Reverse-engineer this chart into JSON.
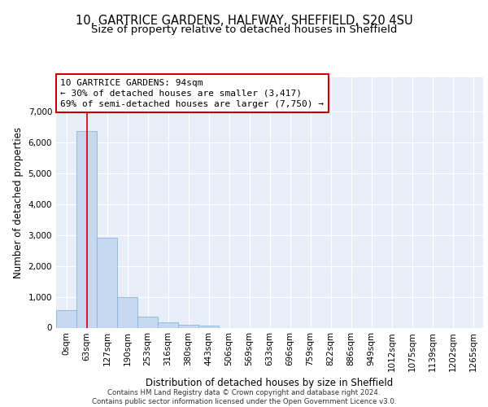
{
  "title_line1": "10, GARTRICE GARDENS, HALFWAY, SHEFFIELD, S20 4SU",
  "title_line2": "Size of property relative to detached houses in Sheffield",
  "xlabel": "Distribution of detached houses by size in Sheffield",
  "ylabel": "Number of detached properties",
  "bar_labels": [
    "0sqm",
    "63sqm",
    "127sqm",
    "190sqm",
    "253sqm",
    "316sqm",
    "380sqm",
    "443sqm",
    "506sqm",
    "569sqm",
    "633sqm",
    "696sqm",
    "759sqm",
    "822sqm",
    "886sqm",
    "949sqm",
    "1012sqm",
    "1075sqm",
    "1139sqm",
    "1202sqm",
    "1265sqm"
  ],
  "bar_values": [
    560,
    6370,
    2920,
    975,
    355,
    160,
    95,
    65,
    0,
    0,
    0,
    0,
    0,
    0,
    0,
    0,
    0,
    0,
    0,
    0,
    0
  ],
  "bar_color": "#c5d8f0",
  "bar_edge_color": "#7aafd4",
  "background_color": "#e8eef8",
  "grid_color": "#ffffff",
  "annotation_text": "10 GARTRICE GARDENS: 94sqm\n← 30% of detached houses are smaller (3,417)\n69% of semi-detached houses are larger (7,750) →",
  "red_line_x": 1.5,
  "ylim": [
    0,
    8100
  ],
  "yticks": [
    0,
    1000,
    2000,
    3000,
    4000,
    5000,
    6000,
    7000
  ],
  "footer_text": "Contains HM Land Registry data © Crown copyright and database right 2024.\nContains public sector information licensed under the Open Government Licence v3.0.",
  "title_fontsize": 10.5,
  "subtitle_fontsize": 9.5,
  "tick_fontsize": 7.5,
  "ylabel_fontsize": 8.5,
  "xlabel_fontsize": 8.5,
  "annot_fontsize": 8
}
